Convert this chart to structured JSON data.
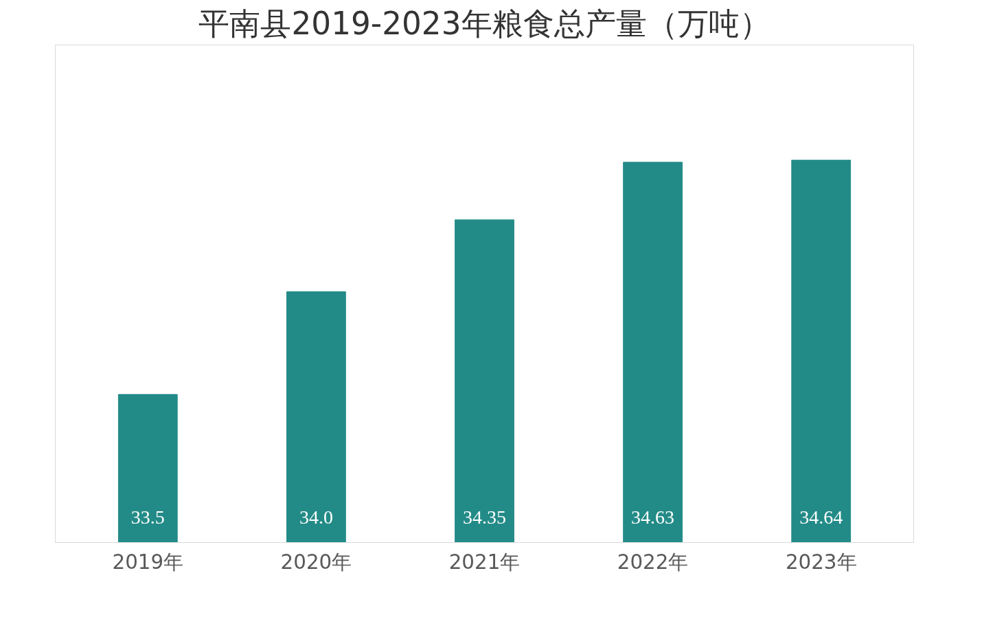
{
  "chart_data": {
    "type": "bar",
    "title": "平南县2019-2023年粮食总产量（万吨）",
    "categories": [
      "2019年",
      "2020年",
      "2021年",
      "2022年",
      "2023年"
    ],
    "values": [
      33.5,
      34.0,
      34.35,
      34.63,
      34.64
    ],
    "color": "#238b87",
    "ylim": [
      32.78,
      35.2
    ],
    "tick_labels": "x",
    "value_labels": [
      "33.5",
      "34.0",
      "34.35",
      "34.63",
      "34.64"
    ],
    "grid": false
  }
}
